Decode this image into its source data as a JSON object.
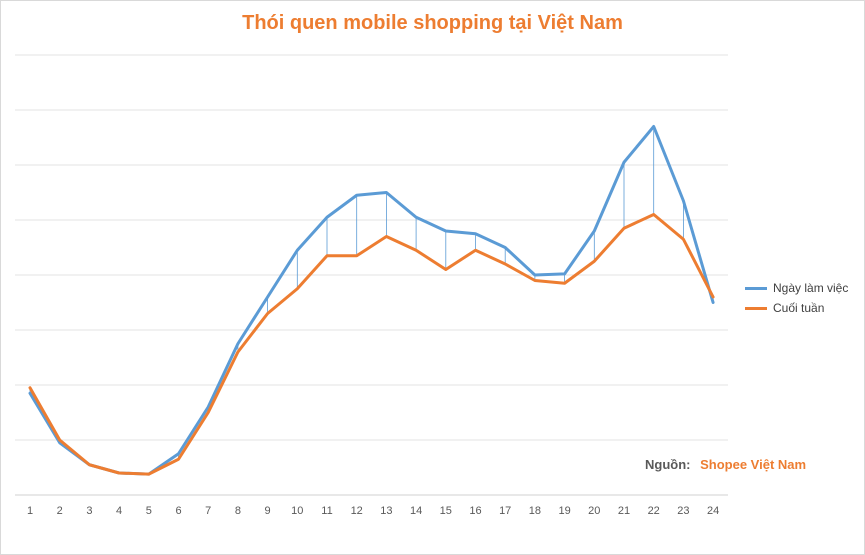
{
  "chart_data": {
    "type": "line",
    "title": "Thói quen mobile shopping tại Việt Nam",
    "xlabel": "",
    "ylabel": "",
    "x": [
      1,
      2,
      3,
      4,
      5,
      6,
      7,
      8,
      9,
      10,
      11,
      12,
      13,
      14,
      15,
      16,
      17,
      18,
      19,
      20,
      21,
      22,
      23,
      24
    ],
    "ylim": [
      0,
      8
    ],
    "grid": true,
    "legend_position": "right",
    "series": [
      {
        "name": "Ngày làm việc",
        "color": "#5b9bd5",
        "values": [
          1.85,
          0.95,
          0.55,
          0.4,
          0.38,
          0.75,
          1.6,
          2.75,
          3.6,
          4.45,
          5.05,
          5.45,
          5.5,
          5.05,
          4.8,
          4.75,
          4.5,
          4.0,
          4.02,
          4.8,
          6.05,
          6.7,
          5.35,
          3.5
        ]
      },
      {
        "name": "Cuối tuần",
        "color": "#ed7d31",
        "values": [
          1.95,
          1.0,
          0.55,
          0.4,
          0.38,
          0.65,
          1.5,
          2.6,
          3.3,
          3.75,
          4.35,
          4.35,
          4.7,
          4.45,
          4.1,
          4.45,
          4.2,
          3.9,
          3.85,
          4.25,
          4.85,
          5.1,
          4.65,
          3.6
        ]
      }
    ]
  },
  "source": {
    "label": "Nguồn:",
    "value": "Shopee Việt Nam"
  }
}
